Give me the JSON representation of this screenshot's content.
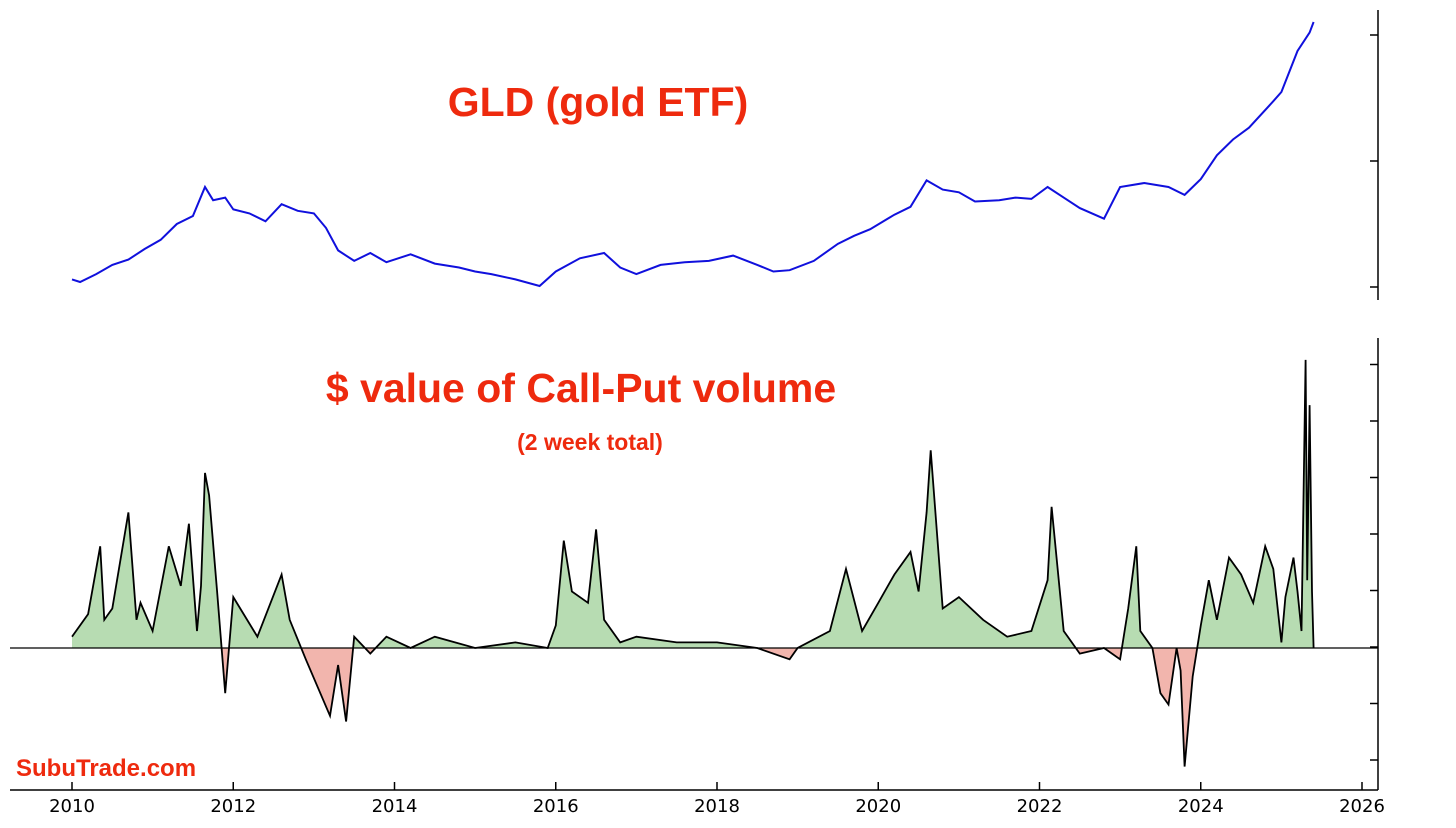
{
  "watermark": "SubuTrade.com",
  "colors": {
    "title": "#ee2a0e",
    "price_line": "#1010dd",
    "positive_fill": "#b7dcb2",
    "negative_fill": "#f2b5ad",
    "flow_line": "#000000"
  },
  "chart_data": [
    {
      "type": "line",
      "title": "GLD (gold ETF)",
      "xlabel": "",
      "ylabel": "",
      "x_range": [
        2010,
        2026
      ],
      "grid": false,
      "y_tick_count": 3,
      "x": [
        2010.0,
        2010.1,
        2010.3,
        2010.5,
        2010.7,
        2010.9,
        2011.1,
        2011.3,
        2011.5,
        2011.65,
        2011.75,
        2011.9,
        2012.0,
        2012.2,
        2012.4,
        2012.6,
        2012.8,
        2013.0,
        2013.15,
        2013.3,
        2013.5,
        2013.7,
        2013.9,
        2014.2,
        2014.5,
        2014.8,
        2015.0,
        2015.2,
        2015.5,
        2015.8,
        2016.0,
        2016.3,
        2016.6,
        2016.8,
        2017.0,
        2017.3,
        2017.6,
        2017.9,
        2018.2,
        2018.5,
        2018.7,
        2018.9,
        2019.2,
        2019.5,
        2019.7,
        2019.9,
        2020.2,
        2020.4,
        2020.6,
        2020.8,
        2021.0,
        2021.2,
        2021.5,
        2021.7,
        2021.9,
        2022.1,
        2022.3,
        2022.5,
        2022.8,
        2023.0,
        2023.3,
        2023.6,
        2023.8,
        2024.0,
        2024.2,
        2024.4,
        2024.6,
        2024.9,
        2025.0,
        2025.2,
        2025.35,
        2025.4
      ],
      "series": [
        {
          "values": [
            108,
            106,
            112,
            119,
            123,
            131,
            138,
            150,
            156,
            178,
            168,
            170,
            161,
            158,
            152,
            165,
            160,
            158,
            147,
            130,
            122,
            128,
            121,
            127,
            120,
            117,
            114,
            112,
            108,
            103,
            114,
            124,
            128,
            117,
            112,
            119,
            121,
            122,
            126,
            119,
            114,
            115,
            122,
            135,
            141,
            146,
            157,
            163,
            183,
            176,
            174,
            167,
            168,
            170,
            169,
            178,
            170,
            162,
            154,
            178,
            181,
            178,
            172,
            184,
            202,
            214,
            223,
            243,
            250,
            281,
            295,
            303
          ]
        }
      ]
    },
    {
      "type": "area",
      "title": "$ value of Call-Put volume",
      "subtitle": "(2 week total)",
      "xlabel": "",
      "ylabel": "",
      "x_range": [
        2010,
        2026
      ],
      "grid": false,
      "y_tick_count": 8,
      "x_ticks": [
        "2010",
        "2012",
        "2014",
        "2016",
        "2018",
        "2020",
        "2022",
        "2024",
        "2026"
      ],
      "x": [
        2010.0,
        2010.2,
        2010.35,
        2010.4,
        2010.5,
        2010.7,
        2010.8,
        2010.85,
        2011.0,
        2011.2,
        2011.35,
        2011.45,
        2011.55,
        2011.6,
        2011.65,
        2011.7,
        2011.8,
        2011.9,
        2012.0,
        2012.3,
        2012.6,
        2012.7,
        2012.9,
        2013.2,
        2013.3,
        2013.4,
        2013.5,
        2013.7,
        2013.9,
        2014.2,
        2014.5,
        2015.0,
        2015.5,
        2015.9,
        2016.0,
        2016.1,
        2016.2,
        2016.4,
        2016.5,
        2016.6,
        2016.8,
        2017.0,
        2017.5,
        2018.0,
        2018.5,
        2018.9,
        2019.0,
        2019.4,
        2019.6,
        2019.8,
        2020.0,
        2020.2,
        2020.4,
        2020.5,
        2020.6,
        2020.65,
        2020.8,
        2021.0,
        2021.3,
        2021.6,
        2021.9,
        2022.1,
        2022.15,
        2022.3,
        2022.5,
        2022.8,
        2023.0,
        2023.1,
        2023.2,
        2023.25,
        2023.4,
        2023.5,
        2023.6,
        2023.7,
        2023.75,
        2023.8,
        2023.9,
        2024.0,
        2024.1,
        2024.2,
        2024.35,
        2024.5,
        2024.65,
        2024.8,
        2024.9,
        2025.0,
        2025.05,
        2025.15,
        2025.2,
        2025.25,
        2025.3,
        2025.32,
        2025.35,
        2025.38,
        2025.4
      ],
      "series": [
        {
          "values": [
            0.2,
            0.6,
            1.8,
            0.5,
            0.7,
            2.4,
            0.5,
            0.8,
            0.3,
            1.8,
            1.1,
            2.2,
            0.3,
            1.1,
            3.1,
            2.7,
            1.0,
            -0.8,
            0.9,
            0.2,
            1.3,
            0.5,
            -0.2,
            -1.2,
            -0.3,
            -1.3,
            0.2,
            -0.1,
            0.2,
            0.0,
            0.2,
            0.0,
            0.1,
            0.0,
            0.4,
            1.9,
            1.0,
            0.8,
            2.1,
            0.5,
            0.1,
            0.2,
            0.1,
            0.1,
            0.0,
            -0.2,
            0.0,
            0.3,
            1.4,
            0.3,
            0.8,
            1.3,
            1.7,
            1.0,
            2.4,
            3.5,
            0.7,
            0.9,
            0.5,
            0.2,
            0.3,
            1.2,
            2.5,
            0.3,
            -0.1,
            0.0,
            -0.2,
            0.7,
            1.8,
            0.3,
            0.0,
            -0.8,
            -1.0,
            0.0,
            -0.4,
            -2.1,
            -0.5,
            0.4,
            1.2,
            0.5,
            1.6,
            1.3,
            0.8,
            1.8,
            1.4,
            0.1,
            0.9,
            1.6,
            1.0,
            0.3,
            5.1,
            1.2,
            4.3,
            1.0,
            0.0
          ]
        }
      ]
    }
  ]
}
